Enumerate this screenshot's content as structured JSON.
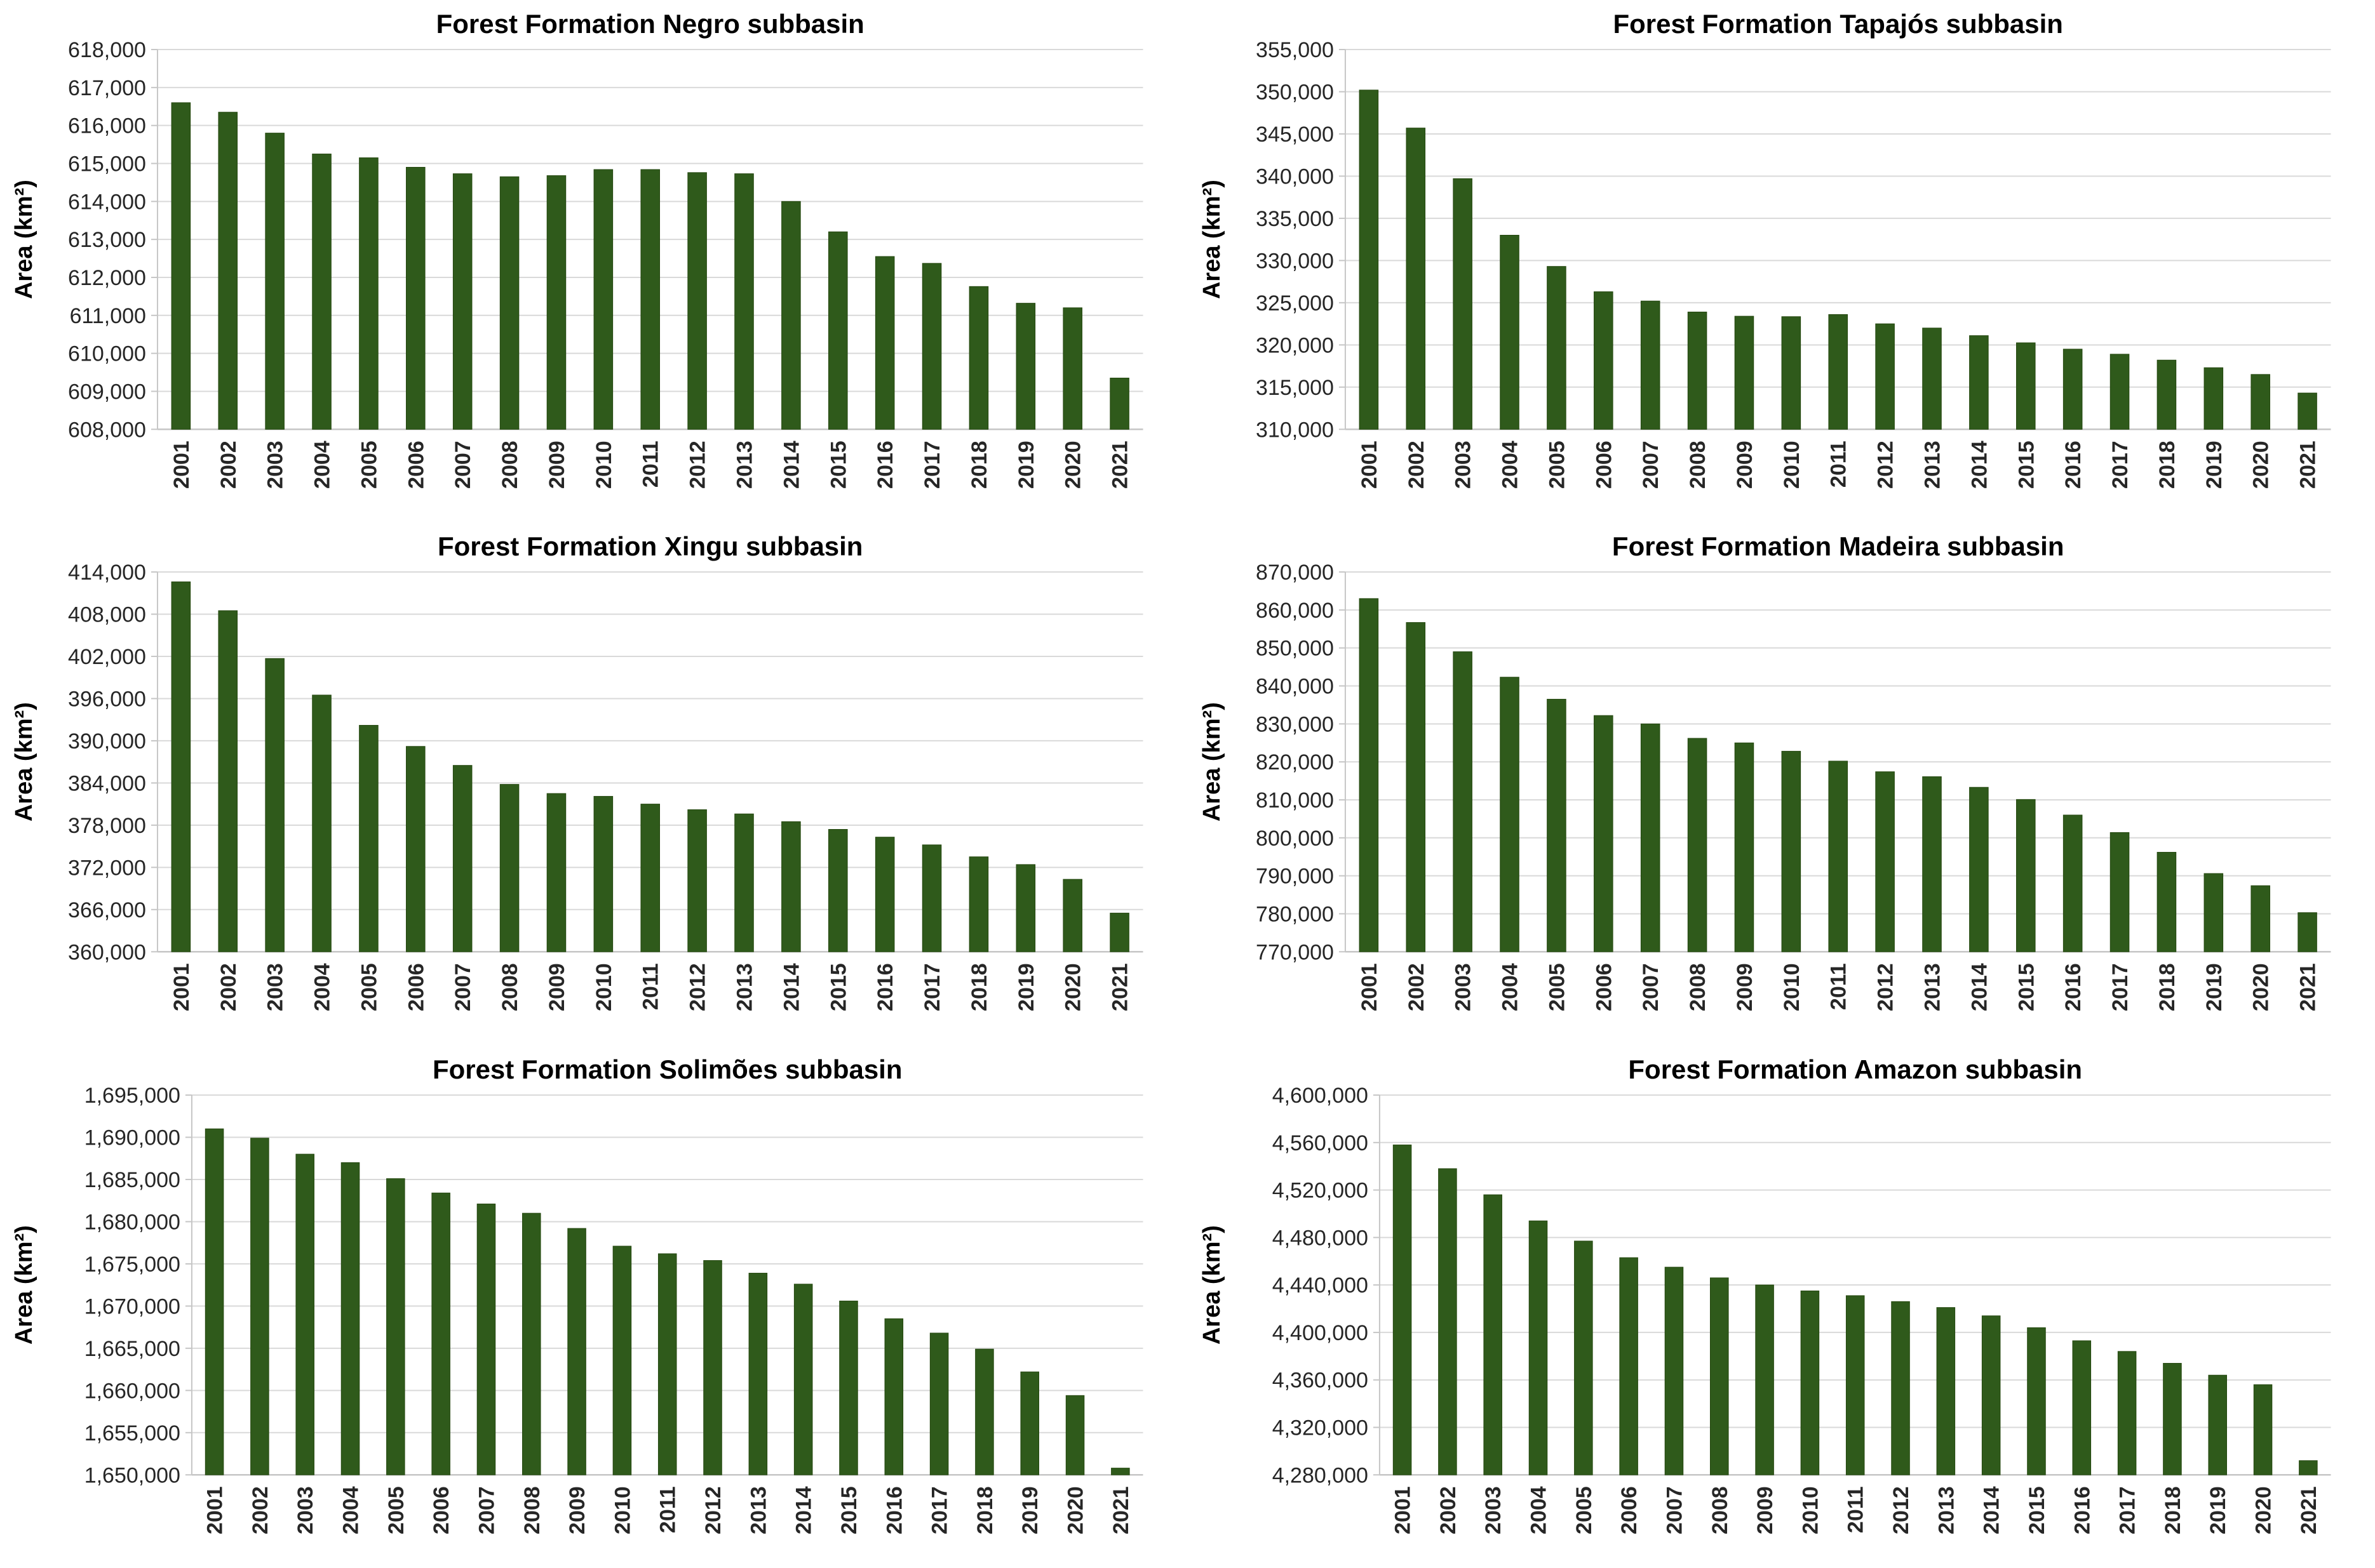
{
  "page": {
    "background": "#ffffff"
  },
  "style": {
    "bar_color": "#2f5a1b",
    "bar_edge_color": "#24470f",
    "gridline_color": "#d9d9d9",
    "axis_color": "#c6c6c6",
    "tick_text_color": "#262626",
    "title_color": "#000000"
  },
  "chart_data": [
    {
      "type": "bar",
      "title": "Forest Formation Negro subbasin",
      "ylabel": "Area (km²)",
      "xlabel": "",
      "ylim": [
        608000,
        618000
      ],
      "ytick_step": 1000,
      "grid": true,
      "legend": false,
      "categories": [
        "2001",
        "2002",
        "2003",
        "2004",
        "2005",
        "2006",
        "2007",
        "2008",
        "2009",
        "2010",
        "2011",
        "2012",
        "2013",
        "2014",
        "2015",
        "2016",
        "2017",
        "2018",
        "2019",
        "2020",
        "2021"
      ],
      "values": [
        616600,
        616350,
        615800,
        615250,
        615150,
        614900,
        614730,
        614650,
        614680,
        614840,
        614840,
        614760,
        614730,
        614000,
        613200,
        612550,
        612370,
        611760,
        611320,
        611200,
        609350
      ]
    },
    {
      "type": "bar",
      "title": "Forest Formation Tapajós subbasin",
      "ylabel": "Area (km²)",
      "xlabel": "",
      "ylim": [
        310000,
        355000
      ],
      "ytick_step": 5000,
      "grid": true,
      "legend": false,
      "categories": [
        "2001",
        "2002",
        "2003",
        "2004",
        "2005",
        "2006",
        "2007",
        "2008",
        "2009",
        "2010",
        "2011",
        "2012",
        "2013",
        "2014",
        "2015",
        "2016",
        "2017",
        "2018",
        "2019",
        "2020",
        "2021"
      ],
      "values": [
        350200,
        345700,
        339700,
        333000,
        329300,
        326300,
        325200,
        323900,
        323400,
        323350,
        323600,
        322500,
        322000,
        321100,
        320250,
        319500,
        318900,
        318200,
        317300,
        316500,
        314300
      ]
    },
    {
      "type": "bar",
      "title": "Forest Formation Xingu subbasin",
      "ylabel": "Area (km²)",
      "xlabel": "",
      "ylim": [
        360000,
        414000
      ],
      "ytick_step": 6000,
      "grid": true,
      "legend": false,
      "categories": [
        "2001",
        "2002",
        "2003",
        "2004",
        "2005",
        "2006",
        "2007",
        "2008",
        "2009",
        "2010",
        "2011",
        "2012",
        "2013",
        "2014",
        "2015",
        "2016",
        "2017",
        "2018",
        "2019",
        "2020",
        "2021"
      ],
      "values": [
        412600,
        408500,
        401700,
        396500,
        392200,
        389200,
        386500,
        383800,
        382500,
        382100,
        381000,
        380200,
        379600,
        378500,
        377400,
        376300,
        375200,
        373500,
        372400,
        370300,
        365500
      ]
    },
    {
      "type": "bar",
      "title": "Forest Formation Madeira subbasin",
      "ylabel": "Area (km²)",
      "xlabel": "",
      "ylim": [
        770000,
        870000
      ],
      "ytick_step": 10000,
      "grid": true,
      "legend": false,
      "categories": [
        "2001",
        "2002",
        "2003",
        "2004",
        "2005",
        "2006",
        "2007",
        "2008",
        "2009",
        "2010",
        "2011",
        "2012",
        "2013",
        "2014",
        "2015",
        "2016",
        "2017",
        "2018",
        "2019",
        "2020",
        "2021"
      ],
      "values": [
        863000,
        856700,
        849000,
        842300,
        836500,
        832200,
        830000,
        826200,
        825000,
        822800,
        820200,
        817400,
        816100,
        813300,
        810100,
        806000,
        801400,
        796200,
        790600,
        787400,
        780300
      ]
    },
    {
      "type": "bar",
      "title": "Forest Formation Solimões subbasin",
      "ylabel": "Area (km²)",
      "xlabel": "",
      "ylim": [
        1650000,
        1695000
      ],
      "ytick_step": 5000,
      "grid": true,
      "legend": false,
      "categories": [
        "2001",
        "2002",
        "2003",
        "2004",
        "2005",
        "2006",
        "2007",
        "2008",
        "2009",
        "2010",
        "2011",
        "2012",
        "2013",
        "2014",
        "2015",
        "2016",
        "2017",
        "2018",
        "2019",
        "2020",
        "2021"
      ],
      "values": [
        1691000,
        1689900,
        1688000,
        1687000,
        1685100,
        1683400,
        1682100,
        1681000,
        1679200,
        1677100,
        1676200,
        1675400,
        1673900,
        1672600,
        1670600,
        1668500,
        1666800,
        1664900,
        1662200,
        1659400,
        1650800
      ]
    },
    {
      "type": "bar",
      "title": "Forest Formation Amazon subbasin",
      "ylabel": "Area (km²)",
      "xlabel": "",
      "ylim": [
        4280000,
        4600000
      ],
      "ytick_step": 40000,
      "grid": true,
      "legend": false,
      "categories": [
        "2001",
        "2002",
        "2003",
        "2004",
        "2005",
        "2006",
        "2007",
        "2008",
        "2009",
        "2010",
        "2011",
        "2012",
        "2013",
        "2014",
        "2015",
        "2016",
        "2017",
        "2018",
        "2019",
        "2020",
        "2021"
      ],
      "values": [
        4558000,
        4538000,
        4516000,
        4494000,
        4477000,
        4463000,
        4455000,
        4446000,
        4440000,
        4435000,
        4431000,
        4426000,
        4421000,
        4414000,
        4404000,
        4393000,
        4384000,
        4374000,
        4364000,
        4356000,
        4292000
      ]
    }
  ]
}
